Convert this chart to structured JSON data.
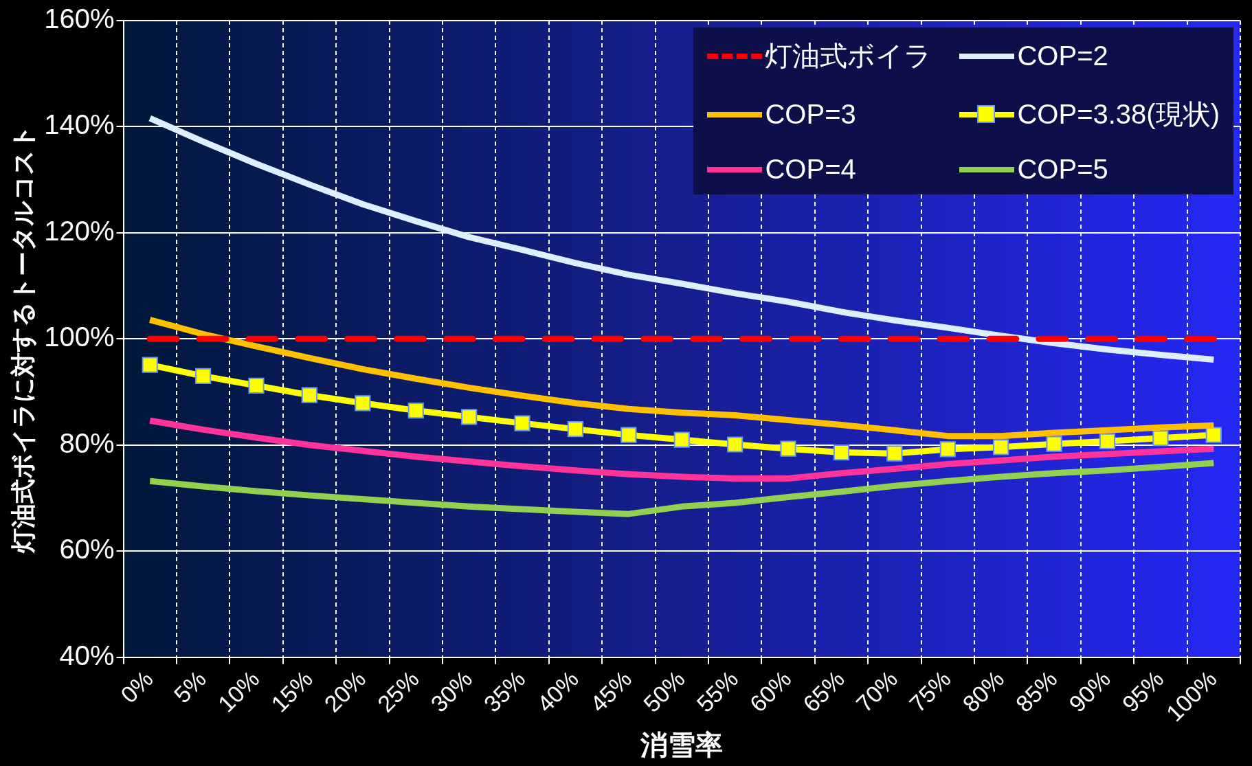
{
  "chart_data": {
    "type": "line",
    "xlabel": "消雪率",
    "ylabel": "灯油式ボイラに対するトータルコスト",
    "categories": [
      "0%",
      "5%",
      "10%",
      "15%",
      "20%",
      "25%",
      "30%",
      "35%",
      "40%",
      "45%",
      "50%",
      "55%",
      "60%",
      "65%",
      "70%",
      "75%",
      "80%",
      "85%",
      "90%",
      "95%",
      "100%"
    ],
    "series": [
      {
        "name": "灯油式ボイラ",
        "color": "#ff0000",
        "line_style": "dashed",
        "marker": "none",
        "values": [
          100,
          100,
          100,
          100,
          100,
          100,
          100,
          100,
          100,
          100,
          100,
          100,
          100,
          100,
          100,
          100,
          100,
          100,
          100,
          100,
          100
        ]
      },
      {
        "name": "COP=2",
        "color": "#ddeeff",
        "marker": "none",
        "values": [
          141.6,
          137.2,
          133.0,
          129.1,
          125.4,
          122.2,
          119.2,
          116.8,
          114.3,
          112.1,
          110.4,
          108.6,
          107.0,
          105.1,
          103.5,
          102.1,
          100.6,
          99.2,
          98.0,
          97.0,
          96.1
        ]
      },
      {
        "name": "COP=3",
        "color": "#ffc000",
        "marker": "none",
        "values": [
          103.6,
          100.9,
          98.6,
          96.4,
          94.3,
          92.5,
          90.8,
          89.3,
          87.9,
          86.8,
          86.1,
          85.6,
          84.7,
          83.8,
          82.8,
          81.7,
          81.7,
          82.3,
          82.8,
          83.3,
          83.7
        ]
      },
      {
        "name": "COP=3.38(現状)",
        "color": "#ffff00",
        "marker": "square",
        "values": [
          95.1,
          93.0,
          91.2,
          89.4,
          87.9,
          86.5,
          85.3,
          84.1,
          83.0,
          81.9,
          81.0,
          80.1,
          79.3,
          78.6,
          78.4,
          79.2,
          79.6,
          80.2,
          80.7,
          81.3,
          81.9
        ]
      },
      {
        "name": "COP=4",
        "color": "#ff3399",
        "marker": "none",
        "values": [
          84.6,
          82.9,
          81.4,
          80.0,
          78.9,
          77.8,
          76.9,
          76.0,
          75.2,
          74.5,
          74.0,
          73.7,
          73.7,
          74.7,
          75.5,
          76.4,
          77.1,
          77.8,
          78.3,
          78.8,
          79.3
        ]
      },
      {
        "name": "COP=5",
        "color": "#92d050",
        "marker": "none",
        "values": [
          73.2,
          72.2,
          71.3,
          70.5,
          69.8,
          69.1,
          68.4,
          67.9,
          67.4,
          67.0,
          68.4,
          69.1,
          70.2,
          71.2,
          72.3,
          73.2,
          74.0,
          74.7,
          75.2,
          75.9,
          76.6
        ]
      }
    ],
    "ylim": [
      40,
      160
    ],
    "yticks": [
      {
        "value": 40,
        "label": "40%"
      },
      {
        "value": 60,
        "label": "60%"
      },
      {
        "value": 80,
        "label": "80%"
      },
      {
        "value": 100,
        "label": "100%"
      },
      {
        "value": 120,
        "label": "120%"
      },
      {
        "value": 140,
        "label": "140%"
      },
      {
        "value": 160,
        "label": "160%"
      }
    ],
    "grid": true,
    "legend": "top right"
  }
}
